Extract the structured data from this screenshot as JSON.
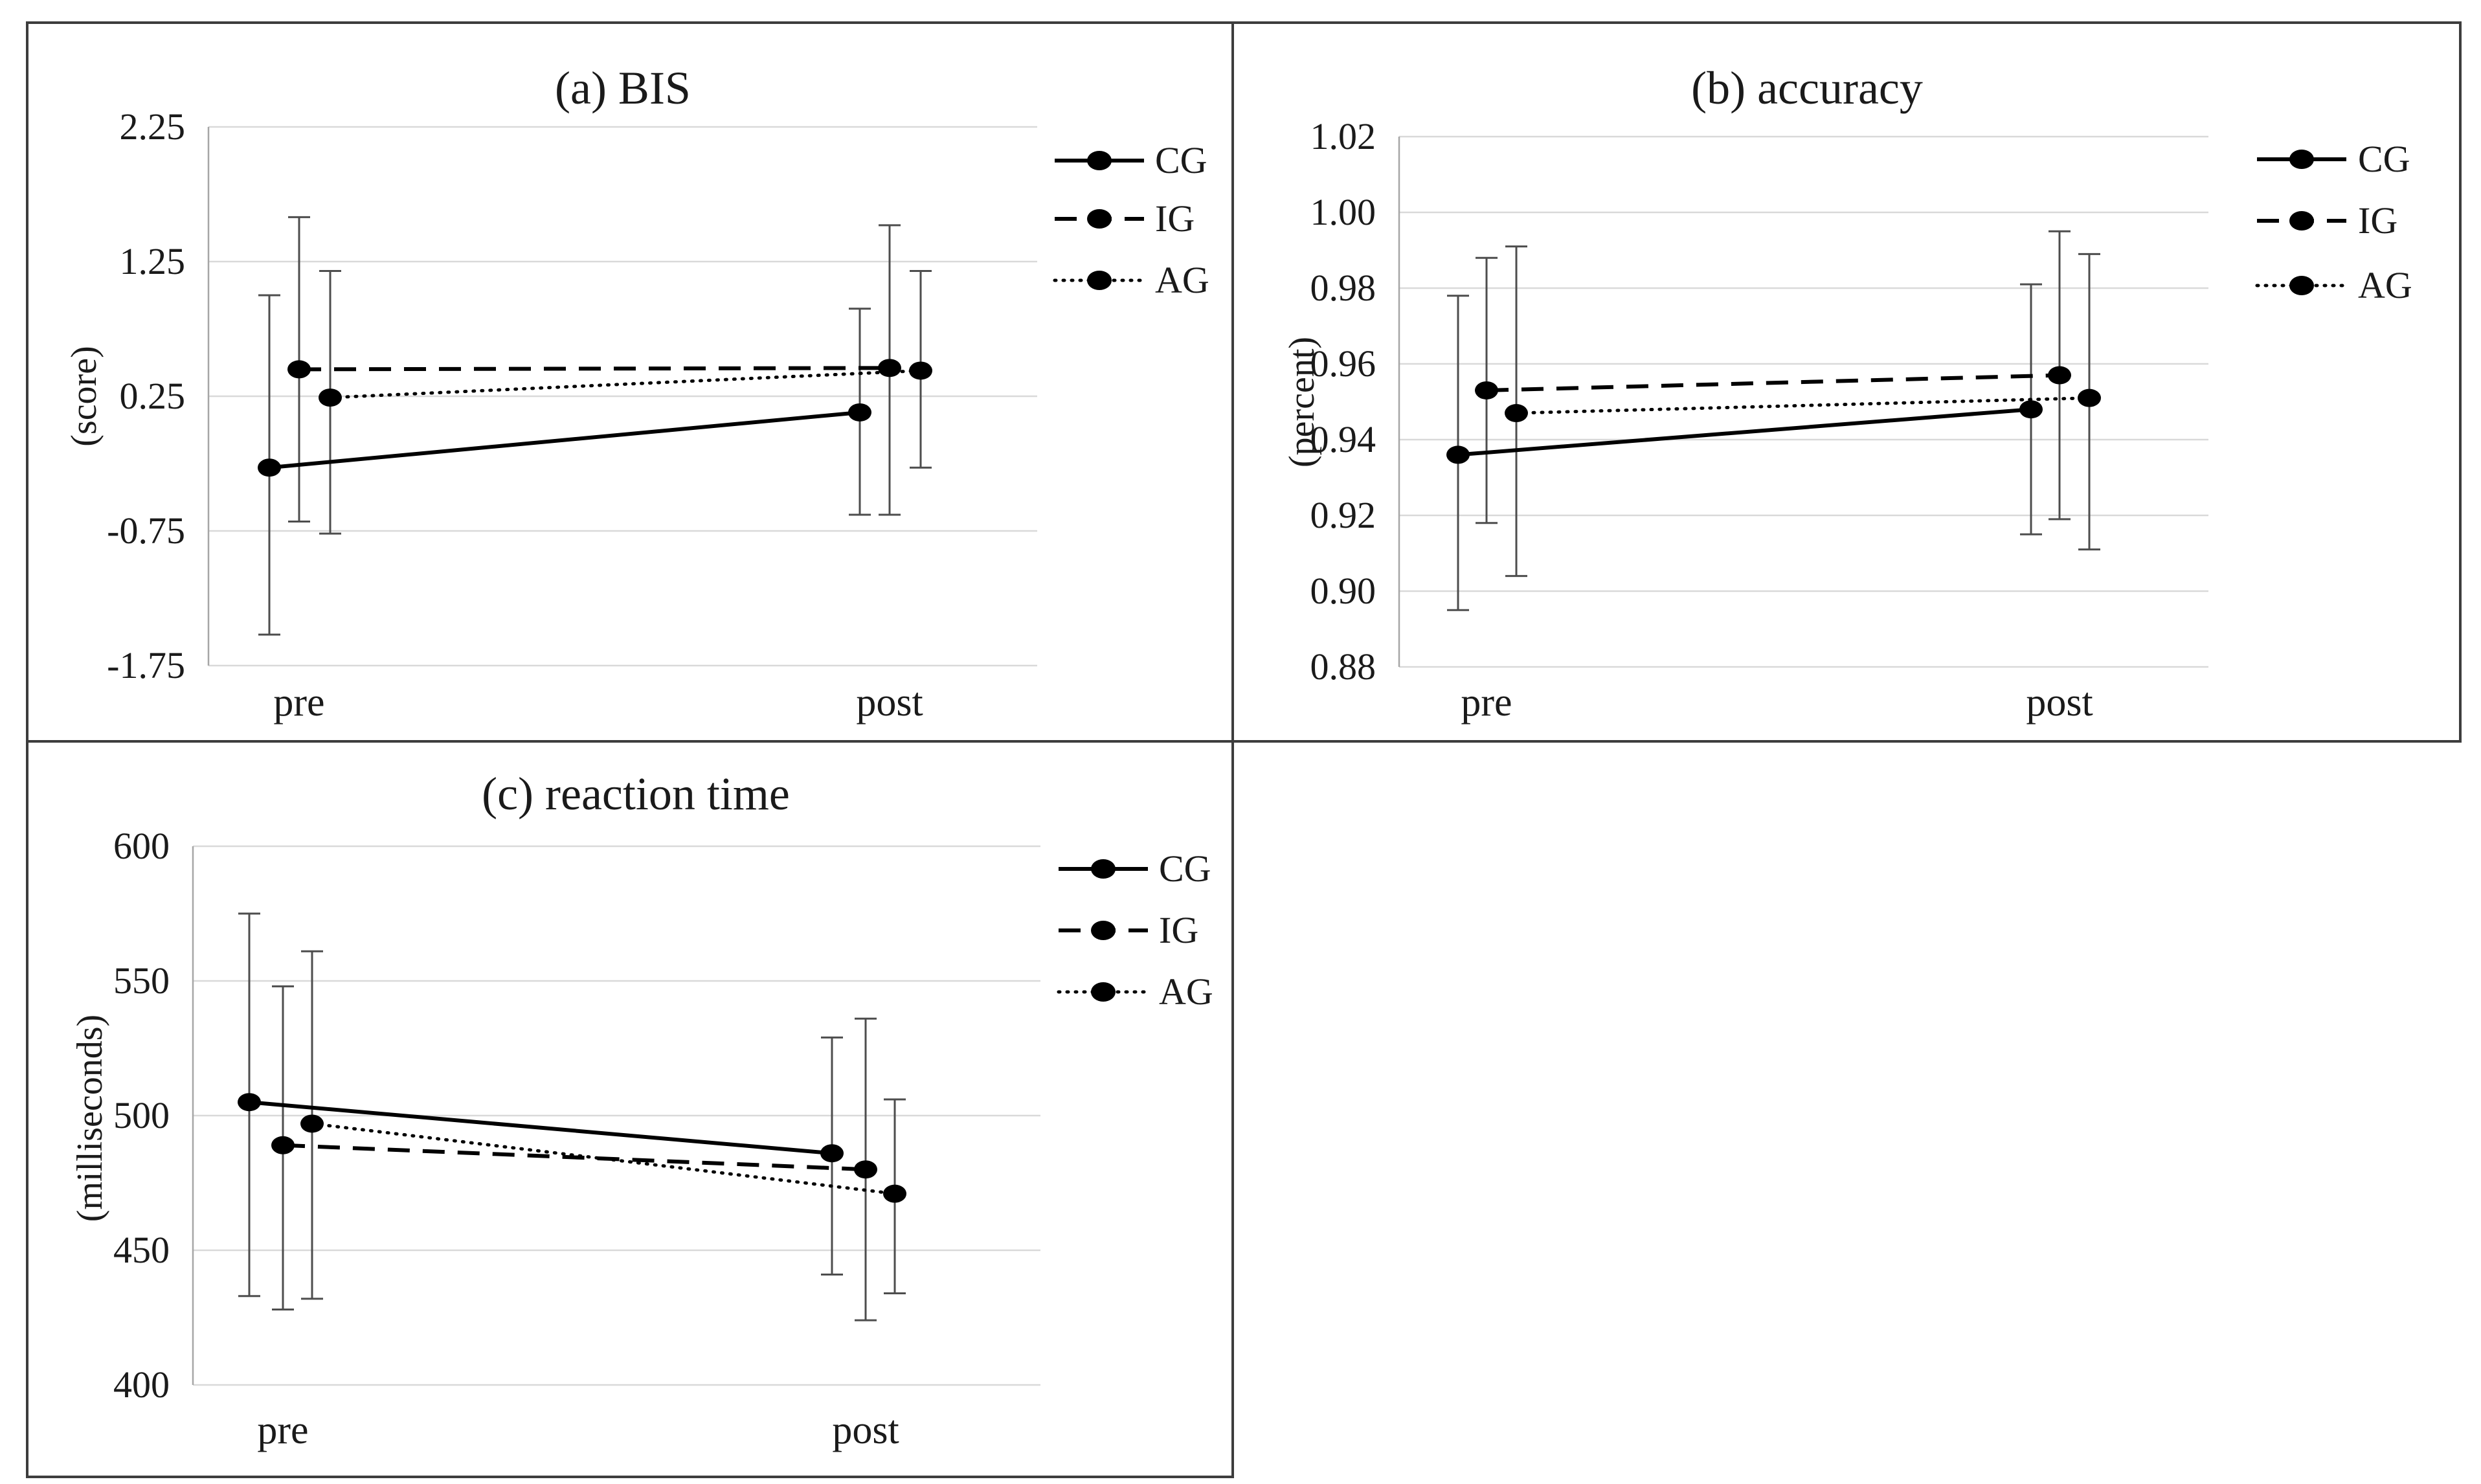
{
  "chart_data": [
    {
      "type": "line",
      "title": "(a) BIS",
      "ylabel": "(score)",
      "xlabel": "",
      "categories": [
        "pre",
        "post"
      ],
      "yticks": [
        2.25,
        1.25,
        0.25,
        -0.75,
        -1.75
      ],
      "ytick_labels": [
        "2.25",
        "1.25",
        "0.25",
        "-0.75",
        "-1.75"
      ],
      "ylim": [
        -1.75,
        2.25
      ],
      "grid": true,
      "legend_position": "right",
      "error_bars": true,
      "series": [
        {
          "name": "CG",
          "line_style": "solid",
          "values": [
            -0.28,
            0.13
          ],
          "err_low": [
            -1.52,
            -0.63
          ],
          "err_high": [
            1.0,
            0.9
          ]
        },
        {
          "name": "IG",
          "line_style": "dashed",
          "values": [
            0.45,
            0.46
          ],
          "err_low": [
            -0.68,
            -0.63
          ],
          "err_high": [
            1.58,
            1.52
          ]
        },
        {
          "name": "AG",
          "line_style": "dotted",
          "values": [
            0.24,
            0.44
          ],
          "err_low": [
            -0.77,
            -0.28
          ],
          "err_high": [
            1.18,
            1.18
          ]
        }
      ]
    },
    {
      "type": "line",
      "title": "(b) accuracy",
      "ylabel": "(percent)",
      "xlabel": "",
      "categories": [
        "pre",
        "post"
      ],
      "yticks": [
        1.02,
        1.0,
        0.98,
        0.96,
        0.94,
        0.92,
        0.9,
        0.88
      ],
      "ytick_labels": [
        "1.02",
        "1.00",
        "0.98",
        "0.96",
        "0.94",
        "0.92",
        "0.90",
        "0.88"
      ],
      "ylim": [
        0.88,
        1.02
      ],
      "grid": true,
      "legend_position": "right",
      "error_bars": true,
      "series": [
        {
          "name": "CG",
          "line_style": "solid",
          "values": [
            0.936,
            0.948
          ],
          "err_low": [
            0.895,
            0.915
          ],
          "err_high": [
            0.978,
            0.981
          ]
        },
        {
          "name": "IG",
          "line_style": "dashed",
          "values": [
            0.953,
            0.957
          ],
          "err_low": [
            0.918,
            0.919
          ],
          "err_high": [
            0.988,
            0.995
          ]
        },
        {
          "name": "AG",
          "line_style": "dotted",
          "values": [
            0.947,
            0.951
          ],
          "err_low": [
            0.904,
            0.911
          ],
          "err_high": [
            0.991,
            0.989
          ]
        }
      ]
    },
    {
      "type": "line",
      "title": "(c) reaction time",
      "ylabel": "(milliseconds)",
      "xlabel": "",
      "categories": [
        "pre",
        "post"
      ],
      "yticks": [
        600,
        550,
        500,
        450,
        400
      ],
      "ytick_labels": [
        "600",
        "550",
        "500",
        "450",
        "400"
      ],
      "ylim": [
        400,
        600
      ],
      "grid": true,
      "legend_position": "right",
      "error_bars": true,
      "series": [
        {
          "name": "CG",
          "line_style": "solid",
          "values": [
            505,
            486
          ],
          "err_low": [
            433,
            441
          ],
          "err_high": [
            575,
            529
          ]
        },
        {
          "name": "IG",
          "line_style": "dashed",
          "values": [
            489,
            480
          ],
          "err_low": [
            428,
            424
          ],
          "err_high": [
            548,
            536
          ]
        },
        {
          "name": "AG",
          "line_style": "dotted",
          "values": [
            497,
            471
          ],
          "err_low": [
            432,
            434
          ],
          "err_high": [
            561,
            506
          ]
        }
      ]
    }
  ],
  "colors": {
    "series": "#000000",
    "error_bar": "#4d4d4d",
    "gridline": "#d9d9d9",
    "axis_line": "#a6a6a6",
    "panel_border": "#3d3d3d",
    "text": "#1a1a1a"
  }
}
